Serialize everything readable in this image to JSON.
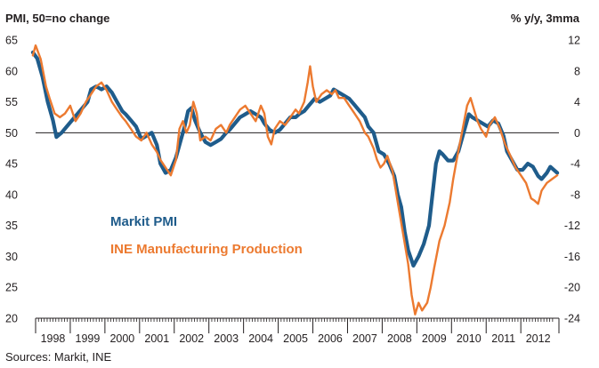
{
  "chart_data": {
    "type": "line",
    "title": "",
    "left_axis_label": "PMI, 50=no change",
    "right_axis_label": "% y/y, 3mma",
    "source": "Sources: Markit, INE",
    "y_left": {
      "min": 20,
      "max": 65,
      "ticks": [
        65,
        60,
        55,
        50,
        45,
        40,
        35,
        30,
        25,
        20
      ]
    },
    "y_right": {
      "min": -24,
      "max": 12,
      "ticks": [
        12,
        8,
        4,
        0,
        -4,
        -8,
        -12,
        -16,
        -20,
        -24
      ]
    },
    "x_ticks": [
      "1998",
      "1999",
      "2000",
      "2001",
      "2002",
      "2003",
      "2004",
      "2005",
      "2006",
      "2007",
      "2008",
      "2009",
      "2010",
      "2011",
      "2012"
    ],
    "x_range": [
      1998.0,
      2013.1
    ],
    "reference_line": {
      "axis": "left",
      "value": 50
    },
    "grid": false,
    "legend_placement": "center-left",
    "series": [
      {
        "name": "Markit PMI",
        "axis": "left",
        "color": "#1f5c8b",
        "points": [
          [
            1997.92,
            63.0
          ],
          [
            1998.05,
            62.0
          ],
          [
            1998.2,
            59.0
          ],
          [
            1998.35,
            55.0
          ],
          [
            1998.5,
            52.0
          ],
          [
            1998.6,
            49.3
          ],
          [
            1998.75,
            50.0
          ],
          [
            1998.9,
            51.0
          ],
          [
            1999.05,
            52.0
          ],
          [
            1999.2,
            53.0
          ],
          [
            1999.35,
            54.0
          ],
          [
            1999.5,
            55.0
          ],
          [
            1999.6,
            57.0
          ],
          [
            1999.75,
            57.5
          ],
          [
            1999.9,
            57.0
          ],
          [
            2000.05,
            57.5
          ],
          [
            2000.2,
            56.5
          ],
          [
            2000.35,
            55.0
          ],
          [
            2000.5,
            53.5
          ],
          [
            2000.6,
            53.0
          ],
          [
            2000.75,
            52.0
          ],
          [
            2000.9,
            51.0
          ],
          [
            2001.05,
            49.0
          ],
          [
            2001.2,
            49.5
          ],
          [
            2001.35,
            50.0
          ],
          [
            2001.5,
            48.0
          ],
          [
            2001.6,
            45.0
          ],
          [
            2001.75,
            43.5
          ],
          [
            2001.9,
            44.0
          ],
          [
            2002.05,
            46.0
          ],
          [
            2002.2,
            49.0
          ],
          [
            2002.3,
            51.0
          ],
          [
            2002.4,
            53.5
          ],
          [
            2002.5,
            54.0
          ],
          [
            2002.6,
            52.0
          ],
          [
            2002.75,
            50.0
          ],
          [
            2002.9,
            48.5
          ],
          [
            2003.05,
            48.0
          ],
          [
            2003.2,
            48.5
          ],
          [
            2003.35,
            49.0
          ],
          [
            2003.5,
            50.0
          ],
          [
            2003.6,
            50.5
          ],
          [
            2003.75,
            51.5
          ],
          [
            2003.9,
            52.5
          ],
          [
            2004.05,
            53.0
          ],
          [
            2004.2,
            53.5
          ],
          [
            2004.35,
            53.0
          ],
          [
            2004.5,
            52.5
          ],
          [
            2004.6,
            51.5
          ],
          [
            2004.75,
            50.5
          ],
          [
            2004.9,
            50.0
          ],
          [
            2005.05,
            50.5
          ],
          [
            2005.2,
            51.5
          ],
          [
            2005.35,
            52.5
          ],
          [
            2005.5,
            52.5
          ],
          [
            2005.6,
            53.0
          ],
          [
            2005.75,
            53.5
          ],
          [
            2005.9,
            54.5
          ],
          [
            2006.05,
            55.5
          ],
          [
            2006.2,
            55.0
          ],
          [
            2006.35,
            55.5
          ],
          [
            2006.5,
            56.0
          ],
          [
            2006.6,
            57.0
          ],
          [
            2006.75,
            56.5
          ],
          [
            2006.9,
            56.0
          ],
          [
            2007.05,
            55.5
          ],
          [
            2007.2,
            54.5
          ],
          [
            2007.35,
            53.5
          ],
          [
            2007.5,
            52.5
          ],
          [
            2007.6,
            51.0
          ],
          [
            2007.75,
            50.0
          ],
          [
            2007.9,
            47.0
          ],
          [
            2008.05,
            46.5
          ],
          [
            2008.2,
            45.0
          ],
          [
            2008.35,
            43.0
          ],
          [
            2008.45,
            40.0
          ],
          [
            2008.55,
            38.0
          ],
          [
            2008.65,
            34.0
          ],
          [
            2008.75,
            31.0
          ],
          [
            2008.9,
            28.5
          ],
          [
            2009.05,
            30.0
          ],
          [
            2009.2,
            32.0
          ],
          [
            2009.35,
            35.0
          ],
          [
            2009.45,
            40.0
          ],
          [
            2009.55,
            45.0
          ],
          [
            2009.65,
            47.0
          ],
          [
            2009.75,
            46.5
          ],
          [
            2009.9,
            45.5
          ],
          [
            2010.05,
            45.5
          ],
          [
            2010.2,
            47.0
          ],
          [
            2010.35,
            50.0
          ],
          [
            2010.5,
            53.0
          ],
          [
            2010.6,
            52.5
          ],
          [
            2010.75,
            52.0
          ],
          [
            2010.9,
            51.5
          ],
          [
            2011.05,
            51.0
          ],
          [
            2011.2,
            52.0
          ],
          [
            2011.35,
            51.5
          ],
          [
            2011.5,
            49.5
          ],
          [
            2011.6,
            47.0
          ],
          [
            2011.75,
            45.5
          ],
          [
            2011.9,
            44.0
          ],
          [
            2012.05,
            44.0
          ],
          [
            2012.2,
            45.0
          ],
          [
            2012.35,
            44.5
          ],
          [
            2012.5,
            43.0
          ],
          [
            2012.6,
            42.5
          ],
          [
            2012.75,
            43.5
          ],
          [
            2012.85,
            44.5
          ],
          [
            2012.95,
            44.0
          ],
          [
            2013.05,
            43.5
          ]
        ]
      },
      {
        "name": "INE Manufacturing Production",
        "axis": "right",
        "color": "#ec7a30",
        "points": [
          [
            1997.92,
            10.0
          ],
          [
            1998.0,
            11.3
          ],
          [
            1998.15,
            9.5
          ],
          [
            1998.3,
            6.0
          ],
          [
            1998.4,
            4.5
          ],
          [
            1998.55,
            2.5
          ],
          [
            1998.7,
            2.0
          ],
          [
            1998.85,
            2.5
          ],
          [
            1999.0,
            3.5
          ],
          [
            1999.15,
            1.5
          ],
          [
            1999.3,
            2.5
          ],
          [
            1999.45,
            4.0
          ],
          [
            1999.6,
            5.0
          ],
          [
            1999.75,
            6.0
          ],
          [
            1999.9,
            6.5
          ],
          [
            2000.05,
            5.5
          ],
          [
            2000.2,
            4.0
          ],
          [
            2000.35,
            3.0
          ],
          [
            2000.5,
            2.0
          ],
          [
            2000.6,
            1.5
          ],
          [
            2000.75,
            0.5
          ],
          [
            2000.9,
            -0.5
          ],
          [
            2001.05,
            -1.0
          ],
          [
            2001.2,
            0.0
          ],
          [
            2001.35,
            -1.5
          ],
          [
            2001.5,
            -2.5
          ],
          [
            2001.6,
            -3.5
          ],
          [
            2001.75,
            -4.5
          ],
          [
            2001.9,
            -5.5
          ],
          [
            2002.05,
            -3.5
          ],
          [
            2002.15,
            0.5
          ],
          [
            2002.25,
            1.5
          ],
          [
            2002.35,
            0.0
          ],
          [
            2002.45,
            1.0
          ],
          [
            2002.55,
            4.0
          ],
          [
            2002.65,
            2.5
          ],
          [
            2002.75,
            -1.0
          ],
          [
            2002.9,
            -0.5
          ],
          [
            2003.05,
            -1.0
          ],
          [
            2003.2,
            0.5
          ],
          [
            2003.35,
            1.0
          ],
          [
            2003.5,
            0.0
          ],
          [
            2003.6,
            1.0
          ],
          [
            2003.75,
            2.0
          ],
          [
            2003.9,
            3.0
          ],
          [
            2004.05,
            3.5
          ],
          [
            2004.2,
            2.5
          ],
          [
            2004.35,
            1.5
          ],
          [
            2004.5,
            3.5
          ],
          [
            2004.6,
            2.5
          ],
          [
            2004.7,
            -0.5
          ],
          [
            2004.8,
            -1.5
          ],
          [
            2004.9,
            0.5
          ],
          [
            2005.05,
            1.5
          ],
          [
            2005.2,
            1.0
          ],
          [
            2005.35,
            2.0
          ],
          [
            2005.5,
            3.0
          ],
          [
            2005.6,
            2.5
          ],
          [
            2005.75,
            4.0
          ],
          [
            2005.85,
            6.5
          ],
          [
            2005.92,
            8.6
          ],
          [
            2006.0,
            6.0
          ],
          [
            2006.1,
            4.0
          ],
          [
            2006.25,
            5.0
          ],
          [
            2006.4,
            5.5
          ],
          [
            2006.55,
            5.0
          ],
          [
            2006.65,
            5.5
          ],
          [
            2006.75,
            4.5
          ],
          [
            2006.9,
            4.5
          ],
          [
            2007.05,
            3.5
          ],
          [
            2007.2,
            2.5
          ],
          [
            2007.35,
            1.5
          ],
          [
            2007.5,
            0.0
          ],
          [
            2007.6,
            -0.5
          ],
          [
            2007.75,
            -2.0
          ],
          [
            2007.85,
            -3.5
          ],
          [
            2007.95,
            -4.5
          ],
          [
            2008.05,
            -4.0
          ],
          [
            2008.15,
            -3.0
          ],
          [
            2008.3,
            -5.0
          ],
          [
            2008.45,
            -9.0
          ],
          [
            2008.6,
            -13.0
          ],
          [
            2008.75,
            -17.0
          ],
          [
            2008.85,
            -21.0
          ],
          [
            2008.95,
            -23.5
          ],
          [
            2009.05,
            -22.0
          ],
          [
            2009.15,
            -23.0
          ],
          [
            2009.3,
            -22.0
          ],
          [
            2009.4,
            -20.0
          ],
          [
            2009.5,
            -17.5
          ],
          [
            2009.65,
            -14.0
          ],
          [
            2009.8,
            -12.0
          ],
          [
            2009.95,
            -9.0
          ],
          [
            2010.05,
            -6.0
          ],
          [
            2010.15,
            -3.5
          ],
          [
            2010.3,
            0.0
          ],
          [
            2010.45,
            3.5
          ],
          [
            2010.55,
            4.5
          ],
          [
            2010.65,
            3.0
          ],
          [
            2010.75,
            1.5
          ],
          [
            2010.85,
            0.5
          ],
          [
            2011.0,
            -0.5
          ],
          [
            2011.1,
            1.0
          ],
          [
            2011.25,
            2.0
          ],
          [
            2011.4,
            0.5
          ],
          [
            2011.55,
            -1.5
          ],
          [
            2011.7,
            -3.0
          ],
          [
            2011.85,
            -4.5
          ],
          [
            2012.0,
            -5.5
          ],
          [
            2012.15,
            -6.5
          ],
          [
            2012.3,
            -8.5
          ],
          [
            2012.4,
            -8.8
          ],
          [
            2012.5,
            -9.2
          ],
          [
            2012.6,
            -7.5
          ],
          [
            2012.75,
            -6.5
          ],
          [
            2012.9,
            -6.0
          ],
          [
            2013.05,
            -5.5
          ]
        ]
      }
    ]
  }
}
